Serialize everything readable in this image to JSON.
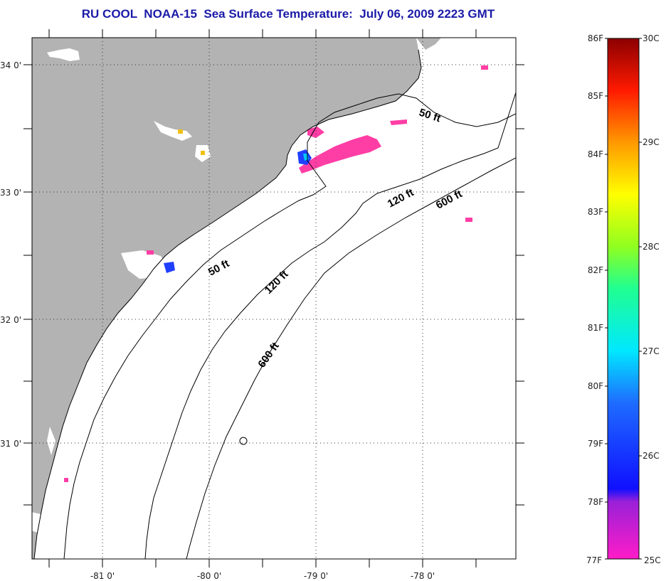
{
  "title": "RU COOL  NOAA-15  Sea Surface Temperature:  July 06, 2009 2223 GMT",
  "map": {
    "lat_labels": [
      "34 0'",
      "33 0'",
      "32 0'",
      "31 0'"
    ],
    "lon_labels": [
      "-81 0'",
      "-80 0'",
      "-79 0'",
      "-78 0'"
    ],
    "contour_labels": {
      "c50a": "50 ft",
      "c50b": "50 ft",
      "c120a": "120 ft",
      "c120b": "120 ft",
      "c600a": "600 ft",
      "c600b": "600 ft"
    }
  },
  "colorbar": {
    "fahrenheit_labels": [
      "86F",
      "85F",
      "84F",
      "83F",
      "82F",
      "81F",
      "80F",
      "79F",
      "78F",
      "77F"
    ],
    "celsius_labels": [
      "30C",
      "29C",
      "28C",
      "27C",
      "26C",
      "25C"
    ],
    "colors": {
      "land": "#b3b3b3",
      "ocean": "#ffffff",
      "warm_patch": "#ff3ea5",
      "cool_patch": "#2040ff"
    }
  }
}
